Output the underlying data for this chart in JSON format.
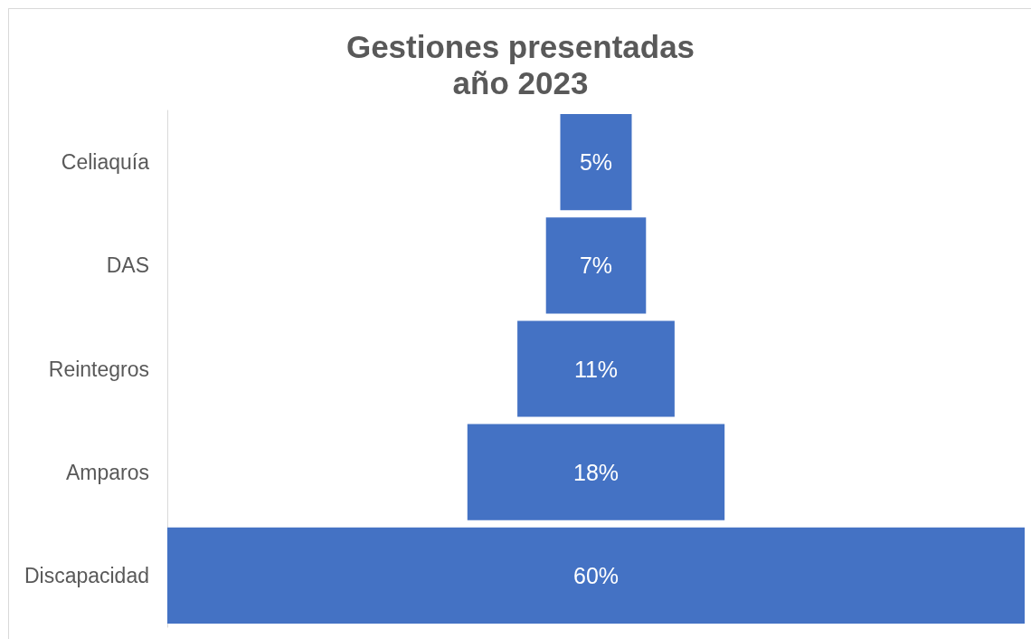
{
  "chart_data": {
    "type": "other",
    "title": "Gestiones presentadas\naño 2023",
    "categories": [
      "Celiaquía",
      "DAS",
      "Reintegros",
      "Amparos",
      "Discapacidad"
    ],
    "values": [
      5,
      7,
      11,
      18,
      60
    ],
    "value_labels": [
      "5%",
      "7%",
      "11%",
      "18%",
      "60%"
    ],
    "color": "#4472c4"
  }
}
